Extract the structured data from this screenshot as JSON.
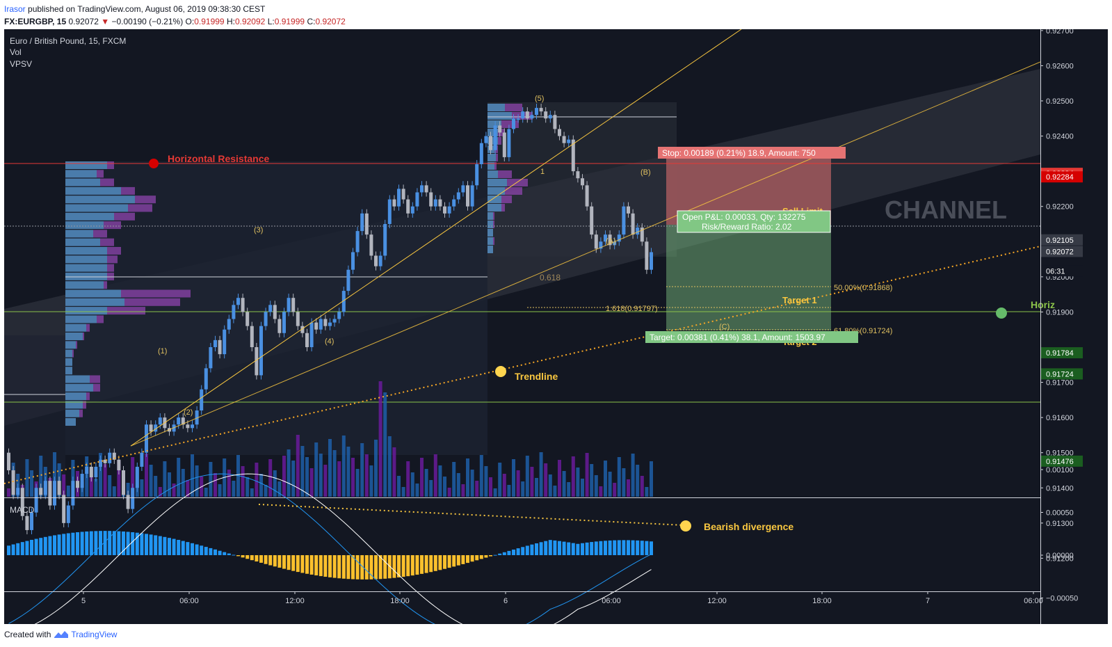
{
  "header": {
    "author": "Irasor",
    "published": "published on TradingView.com, August 06, 2019 09:38:30 CEST",
    "symbol": "FX:EURGBP, 15",
    "last": "0.92072",
    "arrow": "▼",
    "change": "−0.00190 (−0.21%)",
    "open_label": "O:",
    "open": "0.91999",
    "high_label": "H:",
    "high": "0.92092",
    "low_label": "L:",
    "low": "0.91999",
    "close_label": "C:",
    "close": "0.92072"
  },
  "legend": {
    "title": "Euro / British Pound, 15, FXCM",
    "vol": "Vol",
    "vpsv": "VPSV"
  },
  "price_axis": {
    "ticks": [
      "0.92700",
      "0.92600",
      "0.92500",
      "0.92400",
      "0.92200",
      "0.92100",
      "0.92000",
      "0.91900",
      "0.91700",
      "0.91600",
      "0.91500",
      "0.91400",
      "0.91300",
      "0.91200"
    ],
    "tick_values": [
      0.927,
      0.926,
      0.925,
      0.924,
      0.922,
      0.921,
      0.92,
      0.919,
      0.917,
      0.916,
      0.915,
      0.914,
      0.913,
      0.912
    ],
    "tags": [
      {
        "text": "0.92294",
        "value": 0.92294,
        "color": "#e53935"
      },
      {
        "text": "0.92284",
        "value": 0.92284,
        "color": "#d50000"
      },
      {
        "text": "0.92105",
        "value": 0.92105,
        "color": "#363a45"
      },
      {
        "text": "0.92072",
        "value": 0.92072,
        "color": "#363a45"
      },
      {
        "text": "06:31",
        "value": 0.92017,
        "color": "#131722"
      },
      {
        "text": "0.91784",
        "value": 0.91784,
        "color": "#1b5e20"
      },
      {
        "text": "0.91724",
        "value": 0.91724,
        "color": "#1b5e20"
      },
      {
        "text": "0.91476",
        "value": 0.91476,
        "color": "#1b5e20"
      }
    ]
  },
  "time_axis": [
    "5",
    "06:00",
    "12:00",
    "18:00",
    "6",
    "06:00",
    "12:00",
    "18:00",
    "7",
    "06:00"
  ],
  "annotations": {
    "horizontal_resistance": "Horizontal Resistance",
    "trendline": "Trendline",
    "channel": "CHANNEL",
    "horiz": "Horiz",
    "bearish_divergence": "Bearish divergence",
    "wave1": "(1)",
    "wave2": "(2)",
    "wave3": "(3)",
    "wave4": "(4)",
    "wave5": "(5)",
    "waveA": "(A)",
    "waveB": "(B)",
    "waveC": "(C)",
    "fib_1": "1",
    "fib_0618": "0.618",
    "fib_1618": "1.618(0.91797)",
    "fib_50": "50.00%(0.91868)",
    "fib_618": "61.80%(0.91724)",
    "sell_limit": "Sell Limit",
    "target1": "Target 1",
    "target2": "Target 2"
  },
  "position": {
    "stop": "Stop: 0.00189 (0.21%) 18.9, Amount: 750",
    "open_pl": "Open P&L: 0.00033, Qty: 132275",
    "rr": "Risk/Reward Ratio: 2.02",
    "target": "Target: 0.00381 (0.41%) 38.1, Amount: 1503.97"
  },
  "macd": {
    "title": "MACD",
    "ticks": [
      "0.00100",
      "0.00050",
      "0.00000",
      "−0.00050"
    ],
    "tick_values": [
      0.001,
      0.0005,
      0,
      -0.0005
    ]
  },
  "footer": {
    "created": "Created with",
    "brand": "TradingView"
  },
  "colors": {
    "background": "#131722",
    "up_candle": "#4a90e2",
    "down_candle": "#b2b5be",
    "resistance": "#e53935",
    "trend": "#f9c740",
    "green_level": "#8bc34a",
    "stop_zone": "#e57373",
    "target_zone": "#81c784"
  }
}
